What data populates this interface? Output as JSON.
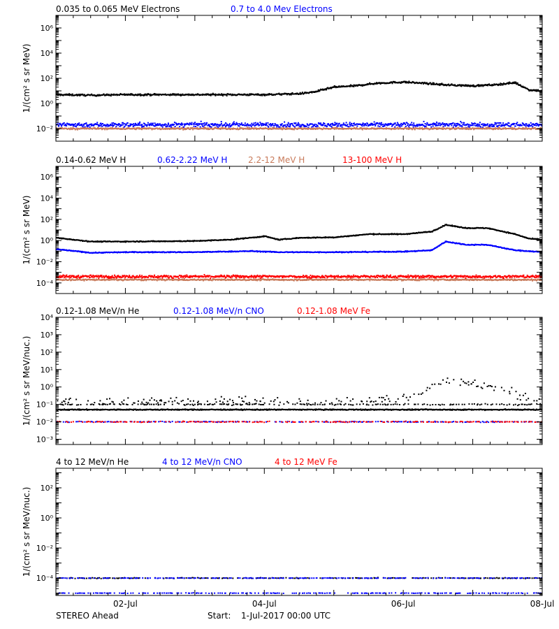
{
  "footer": {
    "spacecraft": "STEREO Ahead",
    "start_label": "Start:",
    "start_value": "1-Jul-2017 00:00 UTC"
  },
  "colors": {
    "black": "#000000",
    "blue": "#0000ff",
    "tan": "#c87a5a",
    "red": "#ff0000"
  },
  "chart_data": [
    {
      "type": "scatter",
      "id": "electrons",
      "ylabel": "1/(cm² s sr MeV)",
      "yscale": "log",
      "ylim": [
        0.001,
        10000000
      ],
      "yticks": [
        {
          "v": 0.01,
          "label": "10⁻²"
        },
        {
          "v": 1,
          "label": "10⁰"
        },
        {
          "v": 100,
          "label": "10²"
        },
        {
          "v": 10000,
          "label": "10⁴"
        },
        {
          "v": 1000000,
          "label": "10⁶"
        }
      ],
      "xlim": [
        0,
        7
      ],
      "legend": [
        {
          "name": "0.035 to 0.065 MeV Electrons",
          "color": "#000000"
        },
        {
          "name": "0.7 to 4.0 Mev Electrons",
          "color": "#0000ff"
        }
      ],
      "series": [
        {
          "color": "#000000",
          "noise": 0.05,
          "x": [
            0,
            0.5,
            1,
            1.5,
            2,
            2.5,
            3,
            3.5,
            3.7,
            4,
            4.3,
            4.6,
            5,
            5.3,
            5.6,
            6,
            6.3,
            6.6,
            6.8,
            7
          ],
          "y": [
            5,
            4.5,
            5,
            5,
            5,
            5,
            5,
            6,
            8,
            20,
            25,
            40,
            50,
            40,
            30,
            25,
            30,
            45,
            12,
            10
          ]
        },
        {
          "color": "#0000ff",
          "noise": 0.13,
          "x": [
            0,
            7
          ],
          "y": [
            0.02,
            0.02
          ]
        },
        {
          "color": "#c87a5a",
          "noise": 0.05,
          "x": [
            0,
            7
          ],
          "y": [
            0.01,
            0.01
          ]
        }
      ]
    },
    {
      "type": "scatter",
      "id": "protons",
      "ylabel": "1/(cm² s sr MeV)",
      "yscale": "log",
      "ylim": [
        1e-05,
        10000000
      ],
      "yticks": [
        {
          "v": 0.0001,
          "label": "10⁻⁴"
        },
        {
          "v": 0.01,
          "label": "10⁻²"
        },
        {
          "v": 1,
          "label": "10⁰"
        },
        {
          "v": 100,
          "label": "10²"
        },
        {
          "v": 10000,
          "label": "10⁴"
        },
        {
          "v": 1000000,
          "label": "10⁶"
        }
      ],
      "xlim": [
        0,
        7
      ],
      "legend": [
        {
          "name": "0.14-0.62 MeV H",
          "color": "#000000"
        },
        {
          "name": "0.62-2.22 MeV H",
          "color": "#0000ff"
        },
        {
          "name": "2.2-12 MeV H",
          "color": "#c87a5a"
        },
        {
          "name": "13-100 MeV H",
          "color": "#ff0000"
        }
      ],
      "series": [
        {
          "color": "#000000",
          "noise": 0.03,
          "x": [
            0,
            0.5,
            1,
            2,
            2.5,
            3,
            3.2,
            3.5,
            4,
            4.5,
            5,
            5.4,
            5.6,
            5.9,
            6.2,
            6.6,
            6.8,
            7
          ],
          "y": [
            1.8,
            0.8,
            0.8,
            0.9,
            1.2,
            2.5,
            1.2,
            1.8,
            2,
            4,
            4,
            7,
            30,
            15,
            15,
            4,
            1.5,
            1.2
          ]
        },
        {
          "color": "#0000ff",
          "noise": 0.03,
          "x": [
            0,
            0.5,
            1,
            2,
            2.8,
            3.2,
            4,
            5,
            5.4,
            5.6,
            5.9,
            6.2,
            6.6,
            6.8,
            7
          ],
          "y": [
            0.15,
            0.07,
            0.08,
            0.08,
            0.1,
            0.08,
            0.08,
            0.09,
            0.12,
            0.8,
            0.4,
            0.4,
            0.12,
            0.1,
            0.08
          ]
        },
        {
          "color": "#c87a5a",
          "noise": 0.05,
          "x": [
            0,
            7
          ],
          "y": [
            0.0002,
            0.0002
          ]
        },
        {
          "color": "#ff0000",
          "noise": 0.09,
          "x": [
            0,
            7
          ],
          "y": [
            0.0004,
            0.0004
          ]
        }
      ]
    },
    {
      "type": "scatter",
      "id": "heavy-low",
      "ylabel": "1/(cm² s sr MeV/nuc.)",
      "yscale": "log",
      "ylim": [
        0.0005,
        10000
      ],
      "yticks": [
        {
          "v": 0.001,
          "label": "10⁻³"
        },
        {
          "v": 0.01,
          "label": "10⁻²"
        },
        {
          "v": 0.1,
          "label": "10⁻¹"
        },
        {
          "v": 1,
          "label": "10⁰"
        },
        {
          "v": 10,
          "label": "10¹"
        },
        {
          "v": 100,
          "label": "10²"
        },
        {
          "v": 1000,
          "label": "10³"
        },
        {
          "v": 10000,
          "label": "10⁴"
        }
      ],
      "xlim": [
        0,
        7
      ],
      "legend": [
        {
          "name": "0.12-1.08 MeV/n He",
          "color": "#000000"
        },
        {
          "name": "0.12-1.08 MeV/n CNO",
          "color": "#0000ff"
        },
        {
          "name": "0.12-1.08 MeV Fe",
          "color": "#ff0000"
        }
      ],
      "series": [
        {
          "color": "#000000",
          "noise": 0.02,
          "x": [
            0,
            7
          ],
          "y": [
            0.05,
            0.05
          ]
        },
        {
          "color": "#000000",
          "noise": 0.03,
          "x": [
            0,
            7
          ],
          "y": [
            0.1,
            0.1
          ],
          "sparse": true
        },
        {
          "color": "#000000",
          "noise": 0.18,
          "x": [
            4.4,
            4.8,
            5.2,
            5.6,
            5.9,
            6.2,
            6.6,
            6.8
          ],
          "y": [
            0.15,
            0.2,
            0.4,
            3,
            1.5,
            1.2,
            0.4,
            0.2
          ],
          "sparse": true
        },
        {
          "color": "#0000ff",
          "noise": 0.02,
          "x": [
            0,
            7
          ],
          "y": [
            0.01,
            0.01
          ],
          "sparse": true
        },
        {
          "color": "#ff0000",
          "noise": 0.02,
          "x": [
            0,
            7
          ],
          "y": [
            0.01,
            0.01
          ],
          "sparse": true
        }
      ]
    },
    {
      "type": "scatter",
      "id": "heavy-high",
      "ylabel": "1/(cm² s sr MeV/nuc.)",
      "yscale": "log",
      "ylim": [
        7e-06,
        2000
      ],
      "yticks": [
        {
          "v": 0.0001,
          "label": "10⁻⁴"
        },
        {
          "v": 0.01,
          "label": "10⁻²"
        },
        {
          "v": 1,
          "label": "10⁰"
        },
        {
          "v": 100,
          "label": "10²"
        }
      ],
      "xlim": [
        0,
        7
      ],
      "xticks": [
        {
          "v": 1,
          "label": "02-Jul"
        },
        {
          "v": 3,
          "label": "04-Jul"
        },
        {
          "v": 5,
          "label": "06-Jul"
        },
        {
          "v": 7,
          "label": "08-Jul"
        }
      ],
      "legend": [
        {
          "name": "4 to 12 MeV/n He",
          "color": "#000000"
        },
        {
          "name": "4 to 12 MeV/n CNO",
          "color": "#0000ff"
        },
        {
          "name": "4 to 12 MeV Fe",
          "color": "#ff0000"
        }
      ],
      "series": [
        {
          "color": "#000000",
          "noise": 0.02,
          "x": [
            0,
            7
          ],
          "y": [
            0.0001,
            0.0001
          ],
          "sparse": true
        },
        {
          "color": "#0000ff",
          "noise": 0.01,
          "x": [
            0,
            7
          ],
          "y": [
            0.0001,
            0.0001
          ],
          "sparse": true
        },
        {
          "color": "#0000ff",
          "noise": 0.01,
          "x": [
            0,
            7
          ],
          "y": [
            1e-05,
            1e-05
          ],
          "sparse": true
        }
      ]
    }
  ]
}
